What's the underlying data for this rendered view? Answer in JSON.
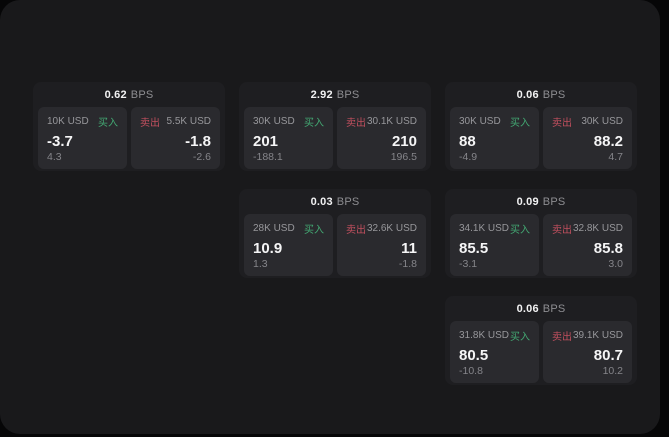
{
  "labels": {
    "bps_unit": "BPS",
    "buy": "买入",
    "sell": "卖出"
  },
  "colors": {
    "buy": "#43a873",
    "sell": "#c04f5e",
    "window_background": "#19191b",
    "card_background": "#1e1e21",
    "panel_background": "#2a2a2e"
  },
  "cards": [
    {
      "row": 1,
      "col": 1,
      "bps": "0.62",
      "buy": {
        "amount": "10K USD",
        "value": "-3.7",
        "sub": "4.3"
      },
      "sell": {
        "amount": "5.5K USD",
        "value": "-1.8",
        "sub": "-2.6"
      }
    },
    {
      "row": 1,
      "col": 2,
      "bps": "2.92",
      "buy": {
        "amount": "30K USD",
        "value": "201",
        "sub": "-188.1"
      },
      "sell": {
        "amount": "30.1K USD",
        "value": "210",
        "sub": "196.5"
      }
    },
    {
      "row": 1,
      "col": 3,
      "bps": "0.06",
      "buy": {
        "amount": "30K USD",
        "value": "88",
        "sub": "-4.9"
      },
      "sell": {
        "amount": "30K USD",
        "value": "88.2",
        "sub": "4.7"
      }
    },
    {
      "row": 2,
      "col": 2,
      "bps": "0.03",
      "buy": {
        "amount": "28K USD",
        "value": "10.9",
        "sub": "1.3"
      },
      "sell": {
        "amount": "32.6K USD",
        "value": "11",
        "sub": "-1.8"
      }
    },
    {
      "row": 2,
      "col": 3,
      "bps": "0.09",
      "buy": {
        "amount": "34.1K USD",
        "value": "85.5",
        "sub": "-3.1"
      },
      "sell": {
        "amount": "32.8K USD",
        "value": "85.8",
        "sub": "3.0"
      }
    },
    {
      "row": 3,
      "col": 3,
      "bps": "0.06",
      "buy": {
        "amount": "31.8K USD",
        "value": "80.5",
        "sub": "-10.8"
      },
      "sell": {
        "amount": "39.1K USD",
        "value": "80.7",
        "sub": "10.2"
      }
    }
  ]
}
